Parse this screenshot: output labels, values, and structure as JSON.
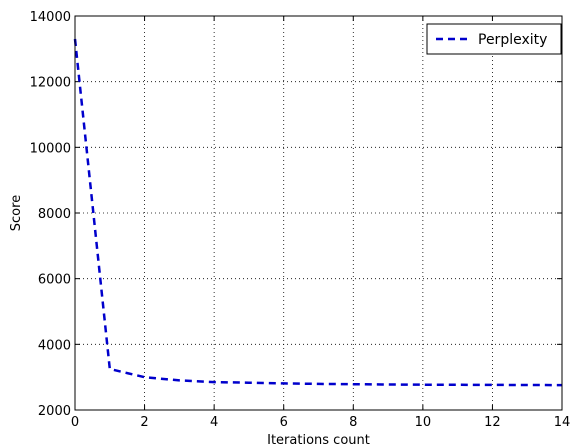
{
  "chart_data": {
    "type": "line",
    "title": "",
    "xlabel": "Iterations count",
    "ylabel": "Score",
    "xlim": [
      0,
      14
    ],
    "ylim": [
      2000,
      14000
    ],
    "xticks": [
      "0",
      "2",
      "4",
      "6",
      "8",
      "10",
      "12",
      "14"
    ],
    "yticks": [
      "2000",
      "4000",
      "6000",
      "8000",
      "10000",
      "12000",
      "14000"
    ],
    "grid": true,
    "legend_position": "top-right",
    "series": [
      {
        "name": "Perplexity",
        "color": "#0000cc",
        "line_style": "dashed",
        "x": [
          0,
          1,
          2,
          3,
          4,
          5,
          6,
          7,
          8,
          9,
          10,
          11,
          12,
          13,
          14
        ],
        "y": [
          13300,
          3250,
          3000,
          2900,
          2850,
          2830,
          2810,
          2795,
          2785,
          2778,
          2772,
          2768,
          2764,
          2761,
          2758
        ]
      }
    ]
  }
}
